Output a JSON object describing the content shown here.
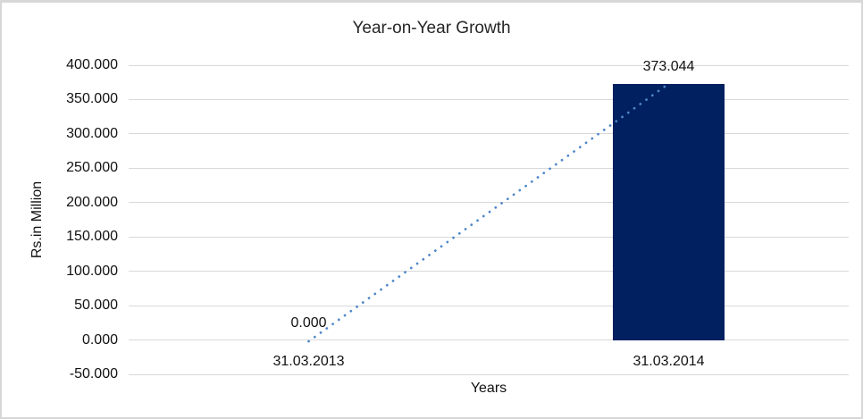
{
  "chart_data": {
    "type": "bar",
    "title": "Year-on-Year Growth",
    "xlabel": "Years",
    "ylabel": "Rs.in Million",
    "categories": [
      "31.03.2013",
      "31.03.2014"
    ],
    "values": [
      0.0,
      373.044
    ],
    "data_labels": [
      "0.000",
      "373.044"
    ],
    "ylim": [
      -50,
      400
    ],
    "ytick_values": [
      400,
      350,
      300,
      250,
      200,
      150,
      100,
      50,
      0,
      -50
    ],
    "ytick_labels": [
      "400.000",
      "350.000",
      "300.000",
      "250.000",
      "200.000",
      "150.000",
      "100.000",
      "50.000",
      "0.000",
      "-50.000"
    ],
    "grid": true,
    "legend": "none",
    "bar_color": "#002060",
    "gridline_color": "#d9d9d9",
    "trendline": {
      "style": "dotted",
      "color": "#4e86c8",
      "from_category_index": 0,
      "from_value": 0.0,
      "to_category_index": 1,
      "to_value": 373.044
    }
  }
}
